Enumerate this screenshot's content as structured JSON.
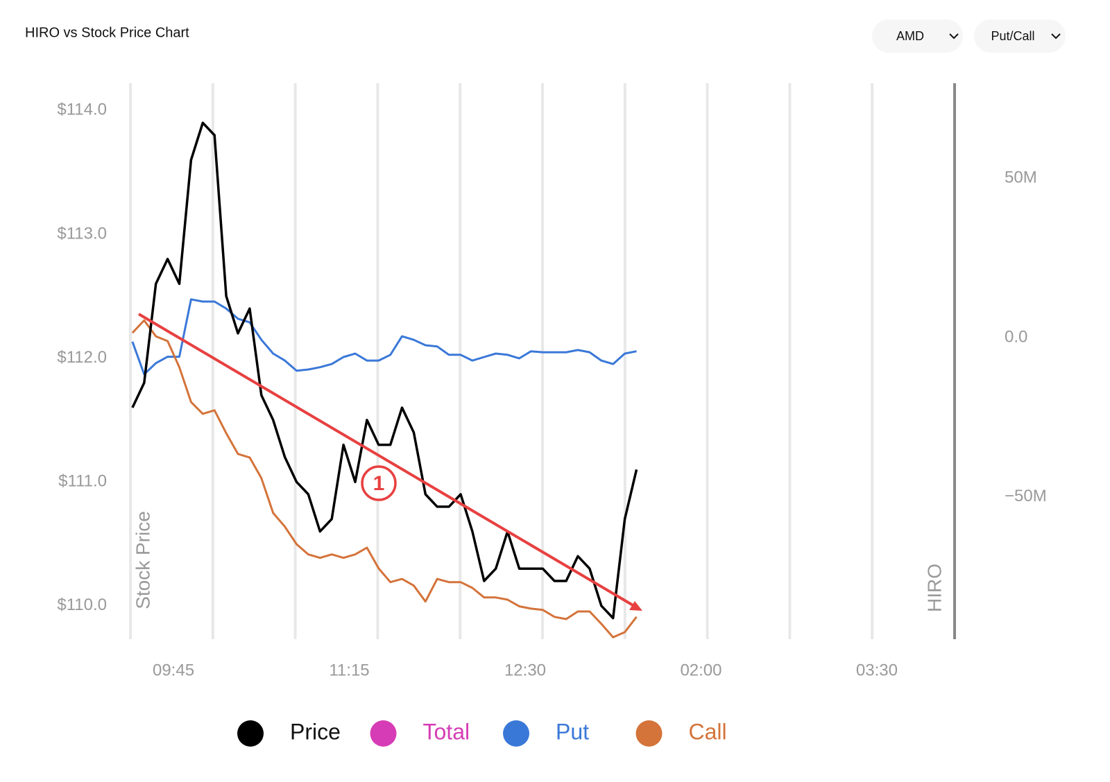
{
  "controls": {
    "ticker": "AMD",
    "mode": "Put/Call"
  },
  "chart_data": {
    "type": "line",
    "title": "HIRO vs Stock Price Chart",
    "y_label": "Stock Price",
    "y2_label": "HIRO",
    "annotation": "1",
    "x": [
      9.4,
      9.5,
      9.6,
      9.7,
      9.8,
      9.9,
      10.0,
      10.1,
      10.2,
      10.3,
      10.4,
      10.5,
      10.6,
      10.7,
      10.8,
      10.9,
      11.0,
      11.1,
      11.2,
      11.3,
      11.4,
      11.5,
      11.6,
      11.7,
      11.8,
      11.9,
      12.0,
      12.1,
      12.2,
      12.3,
      12.4,
      12.5,
      12.6,
      12.7,
      12.8,
      12.9,
      13.0,
      13.1,
      13.2,
      13.3,
      13.4,
      13.5,
      13.6,
      13.7
    ],
    "xlim": [
      9.383,
      16.413
    ],
    "xticks": [
      {
        "value": 9.75,
        "label": "09:45"
      },
      {
        "value": 11.25,
        "label": "11:15"
      },
      {
        "value": 12.75,
        "label": "12:30"
      },
      {
        "value": 14.25,
        "label": "02:00"
      },
      {
        "value": 15.75,
        "label": "03:30"
      }
    ],
    "ylim": [
      109.73,
      114.22
    ],
    "yticks": [
      {
        "value": 110,
        "label": "$110.0"
      },
      {
        "value": 111,
        "label": "$111.0"
      },
      {
        "value": 112,
        "label": "$112.0"
      },
      {
        "value": 113,
        "label": "$113.0"
      },
      {
        "value": 114,
        "label": "$114.0"
      }
    ],
    "y2lim": [
      -94.6,
      79.8
    ],
    "y2ticks": [
      {
        "value": -50,
        "label": "−50M"
      },
      {
        "value": 0,
        "label": "0.0"
      },
      {
        "value": 50,
        "label": "50M"
      }
    ],
    "series": [
      {
        "name": "Price",
        "color": "#000000",
        "values": [
          111.6,
          111.8,
          112.6,
          112.8,
          112.6,
          113.6,
          113.9,
          113.8,
          112.5,
          112.2,
          112.4,
          111.7,
          111.5,
          111.2,
          111.0,
          110.9,
          110.6,
          110.7,
          111.3,
          111.0,
          111.5,
          111.3,
          111.3,
          111.6,
          111.4,
          110.9,
          110.8,
          110.8,
          110.9,
          110.6,
          110.2,
          110.3,
          110.6,
          110.3,
          110.3,
          110.3,
          110.2,
          110.2,
          110.4,
          110.3,
          110.0,
          109.9,
          110.7,
          111.1
        ]
      },
      {
        "name": "Total",
        "color": "#d63cb5",
        "axis": "y2",
        "values": [
          null,
          null,
          null,
          null,
          null,
          null,
          null,
          null,
          null,
          null,
          null,
          null,
          null,
          null,
          null,
          null,
          null,
          null,
          null,
          null,
          null,
          null,
          null,
          null,
          null,
          null,
          null,
          null,
          null,
          null,
          null,
          null,
          null,
          null,
          null,
          null,
          null,
          null,
          null,
          null,
          null,
          null,
          null,
          null
        ]
      },
      {
        "name": "Put",
        "color": "#3a78d8",
        "axis": "y2",
        "values": [
          -1.3,
          -11.5,
          -8,
          -6,
          -6,
          12,
          11.3,
          11.3,
          9.1,
          5.9,
          4.8,
          -0.7,
          -5,
          -7.2,
          -10.4,
          -10,
          -9.3,
          -8.3,
          -6.1,
          -5,
          -7.2,
          -7.2,
          -5.4,
          0.4,
          -0.7,
          -2.4,
          -2.8,
          -5.4,
          -5.4,
          -7.2,
          -6.1,
          -5,
          -5.4,
          -6.5,
          -4.3,
          -4.6,
          -4.6,
          -4.6,
          -3.9,
          -4.6,
          -7.2,
          -8.3,
          -5,
          -4.3
        ]
      },
      {
        "name": "Call",
        "color": "#d4733a",
        "axis": "y2",
        "values": [
          1.5,
          5.4,
          0.4,
          -1.1,
          -9.3,
          -20.2,
          -23.9,
          -22.8,
          -30,
          -36.5,
          -37.6,
          -44.1,
          -55,
          -59.3,
          -64.8,
          -68,
          -69.1,
          -68,
          -69.1,
          -68,
          -65.9,
          -72.4,
          -76.7,
          -75.7,
          -77.8,
          -82.8,
          -75.7,
          -76.7,
          -76.7,
          -78.5,
          -81.5,
          -81.5,
          -82.2,
          -84.3,
          -85,
          -85.4,
          -87.6,
          -88.3,
          -85.9,
          -85.9,
          -89.8,
          -94,
          -92.4,
          -87.6
        ]
      }
    ]
  }
}
